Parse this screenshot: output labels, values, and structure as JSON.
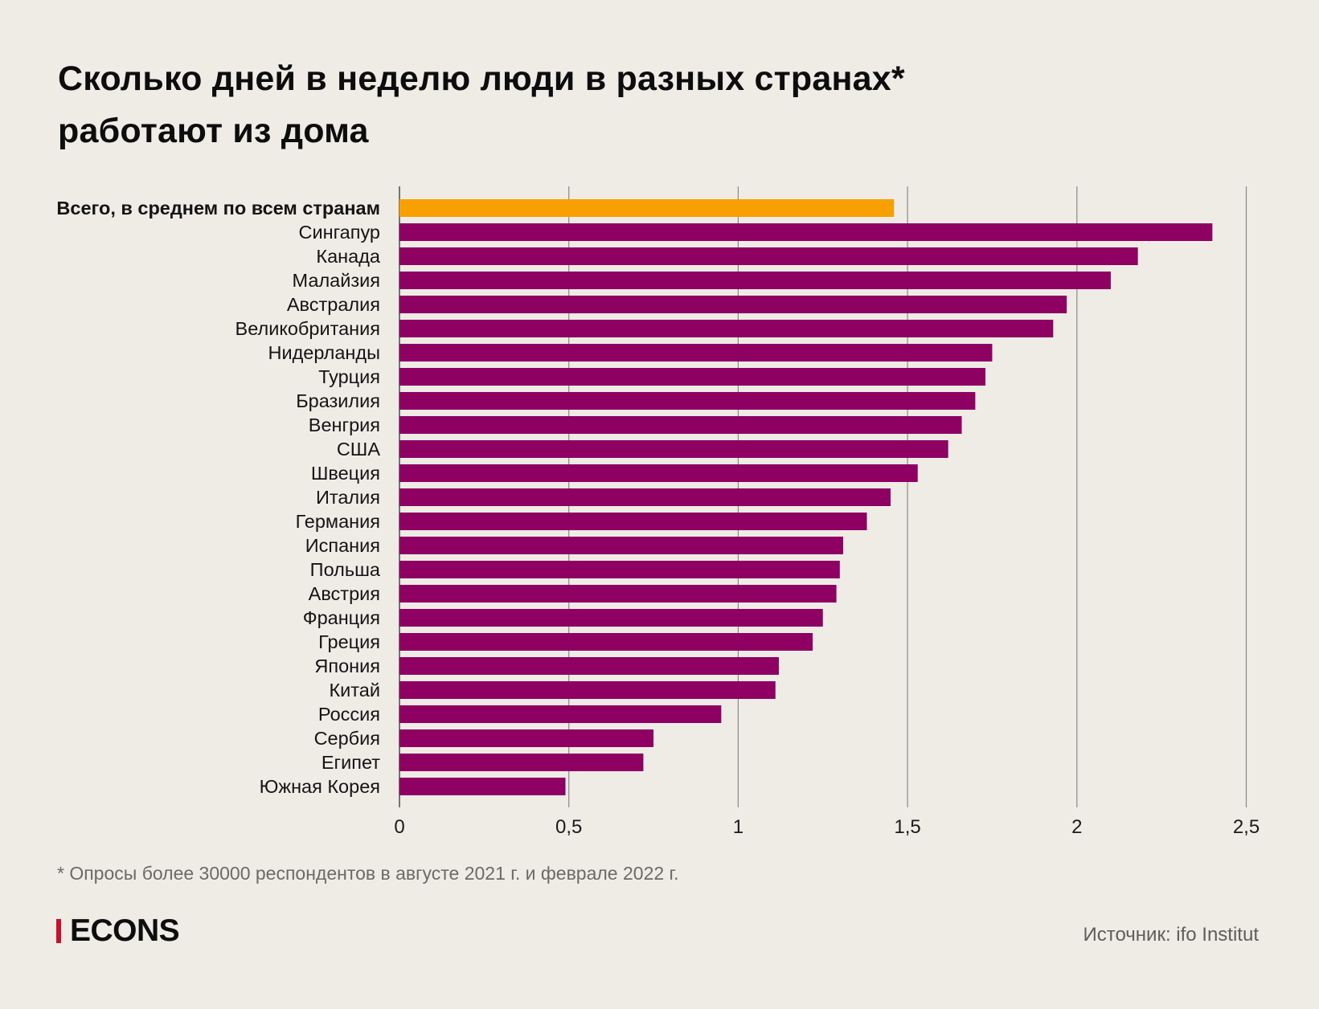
{
  "header": {
    "title_line1": "Сколько дней в неделю люди в разных странах*",
    "title_line2": "работают из дома"
  },
  "footer": {
    "footnote": "* Опросы более 30000 респондентов в августе 2021 г. и феврале 2022 г.",
    "logo": "ECONS",
    "source": "Источник: ifo Institut"
  },
  "colors": {
    "highlight": "#F7A000",
    "bar": "#8E0062",
    "gridline": "#8a8a8a",
    "background": "#EFECE6",
    "logo_accent": "#C8102E"
  },
  "chart_data": {
    "type": "bar",
    "orientation": "horizontal",
    "title": "Сколько дней в неделю люди в разных странах* работают из дома",
    "xlabel": "",
    "ylabel": "",
    "xlim": [
      0,
      2.5
    ],
    "xticks": [
      0,
      0.5,
      1,
      1.5,
      2,
      2.5
    ],
    "xtick_labels": [
      "0",
      "0,5",
      "1",
      "1,5",
      "2",
      "2,5"
    ],
    "grid": true,
    "categories": [
      "Всего, в среднем по всем странам",
      "Сингапур",
      "Канада",
      "Малайзия",
      "Австралия",
      "Великобритания",
      "Нидерланды",
      "Турция",
      "Бразилия",
      "Венгрия",
      "США",
      "Швеция",
      "Италия",
      "Германия",
      "Испания",
      "Польша",
      "Австрия",
      "Франция",
      "Греция",
      "Япония",
      "Китай",
      "Россия",
      "Сербия",
      "Египет",
      "Южная Корея"
    ],
    "values": [
      1.46,
      2.4,
      2.18,
      2.1,
      1.97,
      1.93,
      1.75,
      1.73,
      1.7,
      1.66,
      1.62,
      1.53,
      1.45,
      1.38,
      1.31,
      1.3,
      1.29,
      1.25,
      1.22,
      1.12,
      1.11,
      0.95,
      0.75,
      0.72,
      0.49
    ],
    "highlighted_categories": [
      "Всего, в среднем по всем странам"
    ]
  }
}
